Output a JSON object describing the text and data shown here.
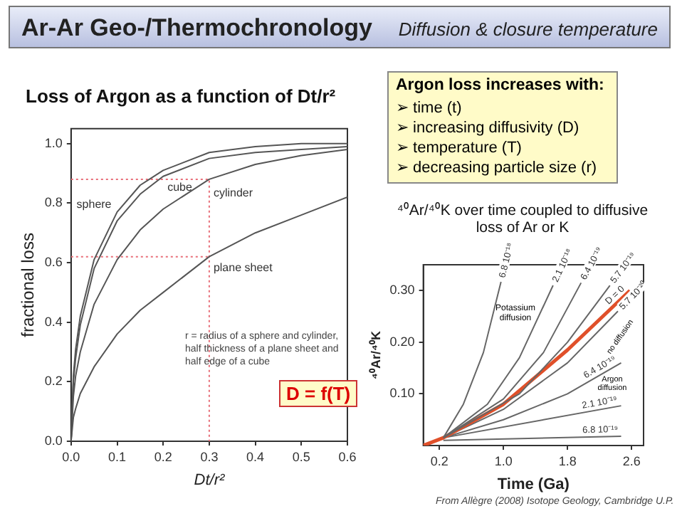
{
  "chart_data": [
    {
      "type": "other",
      "title": "Ar-Ar Geo-/Thermochronology",
      "subtitle": "Diffusion & closure temperature"
    },
    {
      "type": "line",
      "title": "Loss of Argon as a function of Dt/r²",
      "xlabel": "Dt/r²",
      "ylabel": "fractional loss",
      "marker": "none",
      "grid": false,
      "legend": false,
      "x": [
        0,
        0.005,
        0.01,
        0.02,
        0.05,
        0.1,
        0.15,
        0.2,
        0.3,
        0.4,
        0.5,
        0.6
      ],
      "xlim": [
        0,
        0.6
      ],
      "xticks": [
        {
          "value": 0,
          "label": "0.0"
        },
        0.1,
        0.2,
        0.3,
        0.4,
        0.5,
        0.6
      ],
      "ylim": [
        0,
        1.05
      ],
      "yticks": [
        {
          "value": 0,
          "label": "0.0"
        },
        0.2,
        0.4,
        0.6,
        0.8,
        {
          "value": 1,
          "label": "1.0"
        }
      ],
      "series": [
        {
          "name": "sphere",
          "color": "#555555",
          "values": [
            0,
            0.22,
            0.31,
            0.42,
            0.61,
            0.77,
            0.86,
            0.91,
            0.97,
            0.99,
            1.0,
            1.0
          ]
        },
        {
          "name": "cube",
          "color": "#555555",
          "values": [
            0,
            0.2,
            0.28,
            0.39,
            0.58,
            0.74,
            0.83,
            0.89,
            0.95,
            0.97,
            0.98,
            0.99
          ]
        },
        {
          "name": "cylinder",
          "color": "#555555",
          "values": [
            0,
            0.15,
            0.22,
            0.3,
            0.46,
            0.61,
            0.71,
            0.78,
            0.88,
            0.93,
            0.96,
            0.98
          ]
        },
        {
          "name": "plane sheet",
          "color": "#555555",
          "values": [
            0,
            0.08,
            0.11,
            0.16,
            0.25,
            0.36,
            0.44,
            0.5,
            0.62,
            0.7,
            0.76,
            0.82
          ]
        },
        {
          "color": "#e8707a",
          "line_style": "dotted",
          "x": [
            0,
            0.3,
            0.3
          ],
          "values": [
            0.88,
            0.88,
            0
          ]
        },
        {
          "color": "#e8707a",
          "line_style": "dotted",
          "x": [
            0,
            0.3
          ],
          "values": [
            0.62,
            0.62
          ]
        }
      ],
      "annotations": [
        "r = radius of a sphere and cylinder, half thickness of a plane sheet and half edge of a cube",
        "D = f(T)"
      ]
    },
    {
      "type": "other",
      "title": "Argon loss increases with:",
      "annotations": [
        "➢ time (t)",
        "➢ increasing diffusivity (D)",
        "➢ temperature (T)",
        "➢ decreasing particle size (r)"
      ]
    },
    {
      "type": "line",
      "title": "⁴⁰Ar/⁴⁰K over time coupled to diffusive loss of Ar or K",
      "xlabel": "Time (Ga)",
      "ylabel": "⁴⁰Ar/⁴⁰K",
      "marker": "none",
      "grid": false,
      "legend": false,
      "xlim": [
        0,
        2.75
      ],
      "xticks": [
        0.2,
        {
          "value": 1,
          "label": "1.0"
        },
        1.8,
        2.6
      ],
      "ylim": [
        0,
        0.35
      ],
      "yticks": [
        {
          "value": 0.1,
          "label": "0.10"
        },
        {
          "value": 0.2,
          "label": "0.20"
        },
        {
          "value": 0.3,
          "label": "0.30"
        }
      ],
      "series": [
        {
          "name": "6.8 10⁻¹⁸",
          "color": "#666666",
          "x": [
            0.25,
            0.5,
            0.75,
            0.97
          ],
          "values": [
            0.015,
            0.08,
            0.18,
            0.317
          ]
        },
        {
          "name": "2.1 10⁻¹⁸",
          "color": "#666666",
          "x": [
            0.25,
            0.8,
            1.2,
            1.62
          ],
          "values": [
            0.015,
            0.08,
            0.17,
            0.31
          ]
        },
        {
          "name": "6.4 10⁻¹⁹",
          "color": "#666666",
          "x": [
            0.25,
            1.0,
            1.5,
            1.97
          ],
          "values": [
            0.015,
            0.09,
            0.18,
            0.315
          ]
        },
        {
          "name": "5.7 10⁻¹⁹",
          "color": "#666666",
          "x": [
            0.25,
            1.2,
            1.8,
            2.33
          ],
          "values": [
            0.015,
            0.1,
            0.2,
            0.31
          ]
        },
        {
          "name": "D = 0",
          "color": "#e0502a",
          "x": [
            0,
            0.25,
            1.0,
            1.8,
            2.58
          ],
          "values": [
            0,
            0.015,
            0.08,
            0.185,
            0.3
          ]
        },
        {
          "name": "5.7 10⁻²⁰",
          "color": "#666666",
          "x": [
            0.25,
            1.0,
            1.8,
            2.43
          ],
          "values": [
            0.015,
            0.07,
            0.16,
            0.26
          ]
        },
        {
          "name": "6.4 10⁻¹⁹",
          "color": "#666666",
          "x": [
            0.25,
            1.0,
            1.8,
            2.47
          ],
          "values": [
            0.015,
            0.05,
            0.1,
            0.16
          ]
        },
        {
          "name": "2.1 10⁻¹⁹",
          "color": "#666666",
          "x": [
            0.25,
            2.47
          ],
          "values": [
            0.015,
            0.077
          ]
        },
        {
          "name": "6.8 10⁻¹⁹",
          "color": "#666666",
          "x": [
            0.25,
            2.47
          ],
          "values": [
            0.01,
            0.018
          ]
        }
      ],
      "annotations": [
        "Potassium diffusion",
        "Argon diffusion",
        "no diffusion",
        "From Allègre (2008) Isotope Geology, Cambridge U.P."
      ]
    }
  ]
}
